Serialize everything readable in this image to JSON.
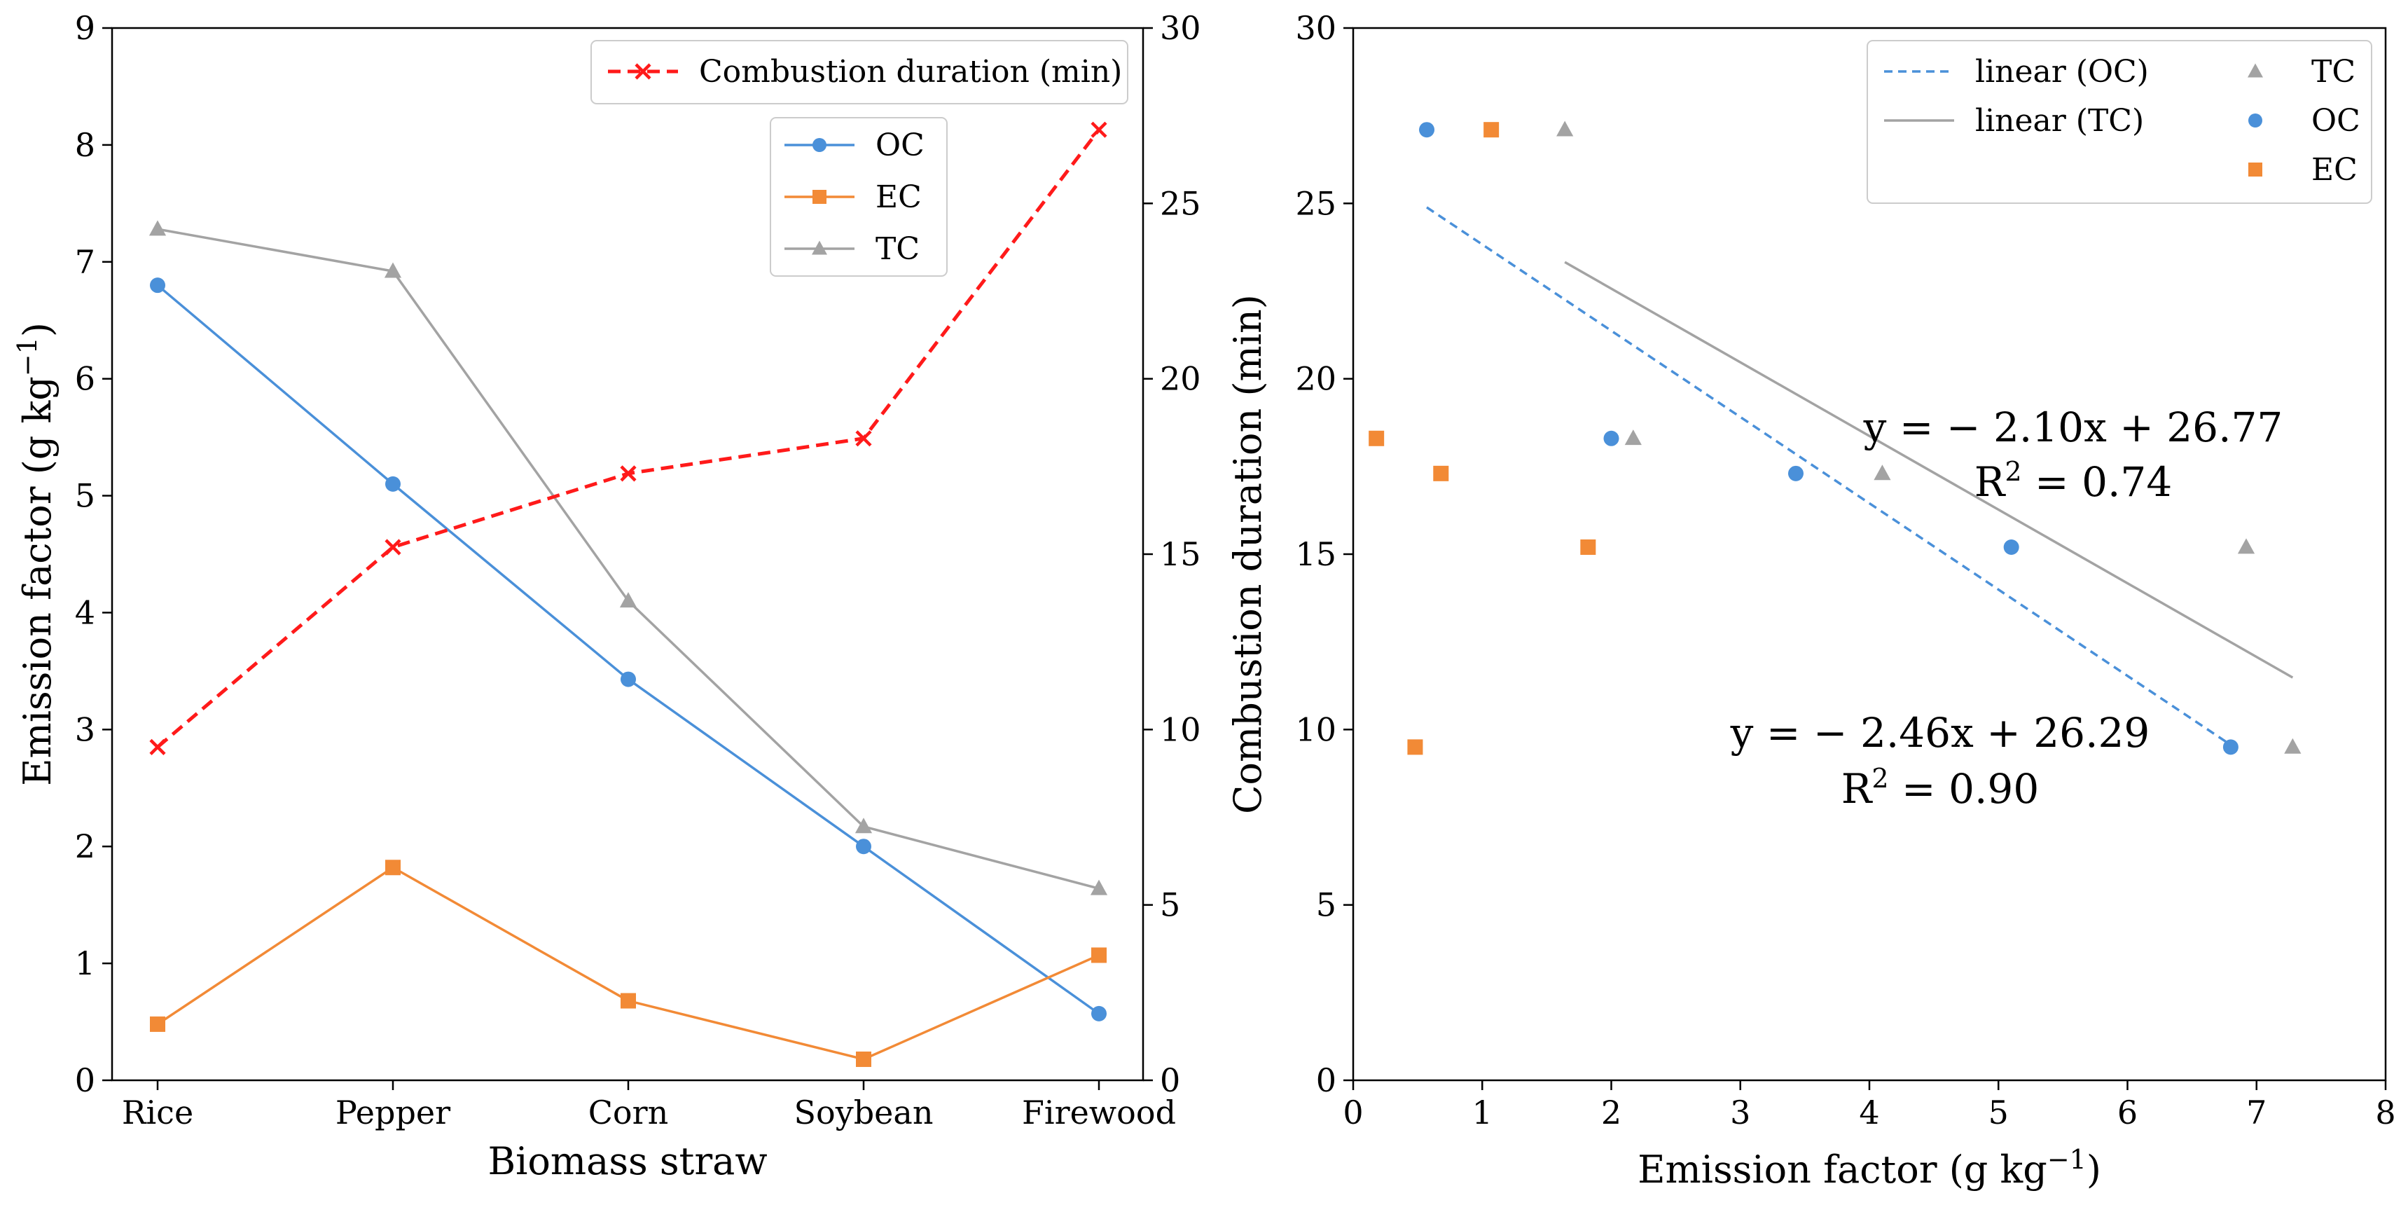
{
  "colors": {
    "oc": "#4a90d9",
    "ec": "#f28a36",
    "tc": "#a3a3a3",
    "duration": "#ff1a1a"
  },
  "chart_data": [
    {
      "type": "line",
      "xlabel": "Biomass straw",
      "ylabel": "Emission factor (g kg",
      "ylabel_sup": "−1",
      "ylabel_close": ")",
      "y2label": "",
      "categories": [
        "Rice",
        "Pepper",
        "Corn",
        "Soybean",
        "Firewood"
      ],
      "ylim": [
        0,
        9
      ],
      "yticks": [
        "0",
        "1",
        "2",
        "3",
        "4",
        "5",
        "6",
        "7",
        "8",
        "9"
      ],
      "y2lim": [
        0,
        30
      ],
      "y2ticks": [
        "0",
        "5",
        "10",
        "15",
        "20",
        "25",
        "30"
      ],
      "series": [
        {
          "name": "OC",
          "axis": "left",
          "marker": "circle",
          "values": [
            6.8,
            5.1,
            3.43,
            2.0,
            0.57
          ]
        },
        {
          "name": "EC",
          "axis": "left",
          "marker": "square",
          "values": [
            0.48,
            1.82,
            0.68,
            0.18,
            1.07
          ]
        },
        {
          "name": "TC",
          "axis": "left",
          "marker": "triangle",
          "values": [
            7.28,
            6.92,
            4.1,
            2.17,
            1.64
          ]
        },
        {
          "name": "Combustion duration (min)",
          "axis": "right",
          "marker": "x",
          "dashed": true,
          "values": [
            9.5,
            15.2,
            17.3,
            18.3,
            27.1
          ]
        }
      ],
      "legend_top": "Combustion duration (min)",
      "legend_main": [
        "OC",
        "EC",
        "TC"
      ]
    },
    {
      "type": "scatter",
      "xlabel": "Emission factor (g kg",
      "xlabel_sup": "−1",
      "xlabel_close": ")",
      "ylabel": "Combustion duration (min)",
      "xlim": [
        0,
        8
      ],
      "xticks": [
        "0",
        "1",
        "2",
        "3",
        "4",
        "5",
        "6",
        "7",
        "8"
      ],
      "ylim": [
        0,
        30
      ],
      "yticks": [
        "0",
        "5",
        "10",
        "15",
        "20",
        "25",
        "30"
      ],
      "series": [
        {
          "name": "TC",
          "marker": "triangle",
          "points": [
            [
              7.28,
              9.5
            ],
            [
              6.92,
              15.2
            ],
            [
              4.1,
              17.3
            ],
            [
              2.17,
              18.3
            ],
            [
              1.64,
              27.1
            ]
          ]
        },
        {
          "name": "OC",
          "marker": "circle",
          "points": [
            [
              6.8,
              9.5
            ],
            [
              5.1,
              15.2
            ],
            [
              3.43,
              17.3
            ],
            [
              2.0,
              18.3
            ],
            [
              0.57,
              27.1
            ]
          ]
        },
        {
          "name": "EC",
          "marker": "square",
          "points": [
            [
              0.48,
              9.5
            ],
            [
              1.82,
              15.2
            ],
            [
              0.68,
              17.3
            ],
            [
              0.18,
              18.3
            ],
            [
              1.07,
              27.1
            ]
          ]
        }
      ],
      "fits": [
        {
          "name": "linear (OC)",
          "slope": -2.46,
          "intercept": 26.29,
          "x_range": [
            0.57,
            6.8
          ],
          "dashed": true
        },
        {
          "name": "linear (TC)",
          "slope": -2.1,
          "intercept": 26.77,
          "x_range": [
            1.64,
            7.28
          ],
          "dashed": false
        }
      ],
      "legend": [
        "linear (OC)",
        "linear (TC)",
        "TC",
        "OC",
        "EC"
      ],
      "annotations": [
        {
          "id": "tc",
          "equation": "y = − 2.10x + 26.77",
          "r2_prefix": "R",
          "r2_sup": "2",
          "r2_value": " = 0.74"
        },
        {
          "id": "oc",
          "equation": "y = − 2.46x + 26.29",
          "r2_prefix": "R",
          "r2_sup": "2",
          "r2_value": " = 0.90"
        }
      ]
    }
  ]
}
